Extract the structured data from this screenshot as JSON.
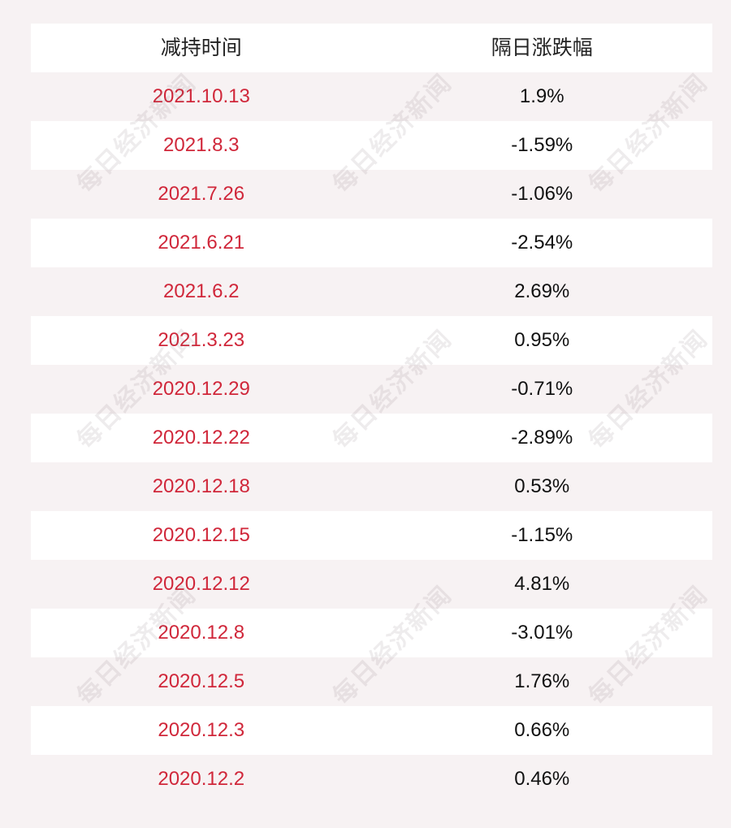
{
  "header": {
    "col_date": "减持时间",
    "col_change": "隔日涨跌幅"
  },
  "rows": [
    {
      "date": "2021.10.13",
      "change": "1.9%"
    },
    {
      "date": "2021.8.3",
      "change": "-1.59%"
    },
    {
      "date": "2021.7.26",
      "change": "-1.06%"
    },
    {
      "date": "2021.6.21",
      "change": "-2.54%"
    },
    {
      "date": "2021.6.2",
      "change": "2.69%"
    },
    {
      "date": "2021.3.23",
      "change": "0.95%"
    },
    {
      "date": "2020.12.29",
      "change": "-0.71%"
    },
    {
      "date": "2020.12.22",
      "change": "-2.89%"
    },
    {
      "date": "2020.12.18",
      "change": "0.53%"
    },
    {
      "date": "2020.12.15",
      "change": "-1.15%"
    },
    {
      "date": "2020.12.12",
      "change": "4.81%"
    },
    {
      "date": "2020.12.8",
      "change": "-3.01%"
    },
    {
      "date": "2020.12.5",
      "change": "1.76%"
    },
    {
      "date": "2020.12.3",
      "change": "0.66%"
    },
    {
      "date": "2020.12.2",
      "change": "0.46%"
    }
  ],
  "watermark": "每日经济新闻",
  "colors": {
    "date_text": "#d0273a",
    "background": "#f7f2f3",
    "row_white": "#ffffff"
  }
}
